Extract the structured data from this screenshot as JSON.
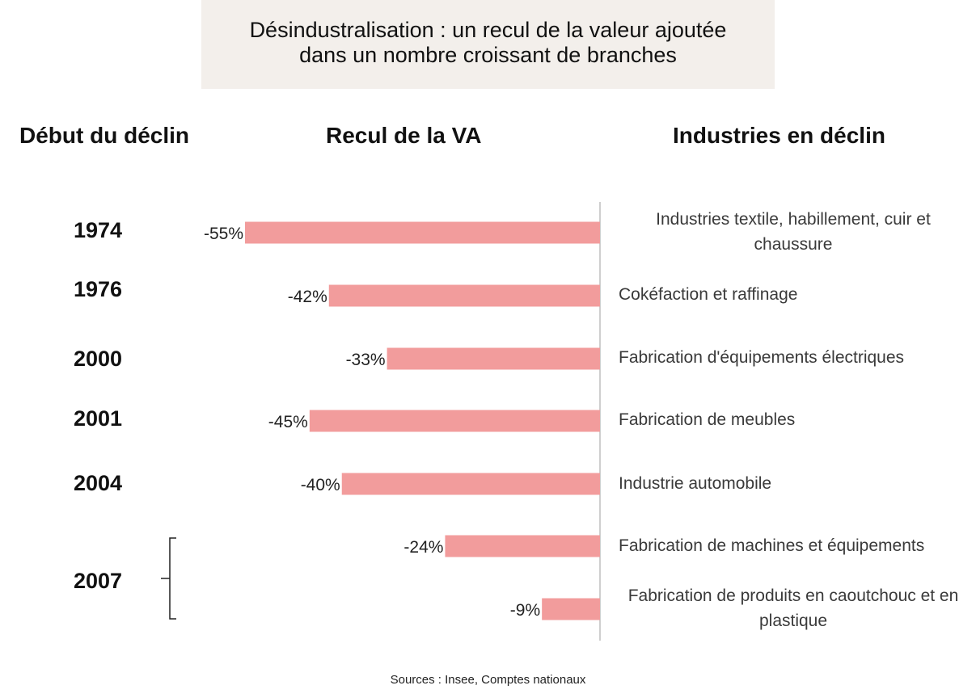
{
  "title": {
    "line1": "Désindustralisation : un recul de la valeur ajoutée",
    "line2": "dans un nombre croissant de branches"
  },
  "headers": {
    "year": "Début du déclin",
    "va": "Recul de la VA",
    "industries": "Industries en déclin"
  },
  "source": "Sources : Insee, Comptes nationaux",
  "colors": {
    "bar": "#f29c9c",
    "axis": "#cfcfcf",
    "title_bg": "#f3efeb"
  },
  "chart_data": {
    "type": "bar",
    "orientation": "horizontal",
    "value_unit": "%",
    "categories": [
      "Industries textile, habillement, cuir et chaussure",
      "Cokéfaction et raffinage",
      "Fabrication d'équipements électriques",
      "Fabrication de meubles",
      "Industrie automobile",
      "Fabrication de machines et équipements",
      "Fabrication de produits en caoutchouc et en plastique"
    ],
    "values": [
      -55,
      -42,
      -33,
      -45,
      -40,
      -24,
      -9
    ],
    "value_labels": [
      "-55%",
      "-42%",
      "-33%",
      "-45%",
      "-40%",
      "-24%",
      "-9%"
    ],
    "years": [
      "1974",
      "1976",
      "2000",
      "2001",
      "2004",
      "2007"
    ],
    "xlim": [
      -55,
      0
    ]
  }
}
